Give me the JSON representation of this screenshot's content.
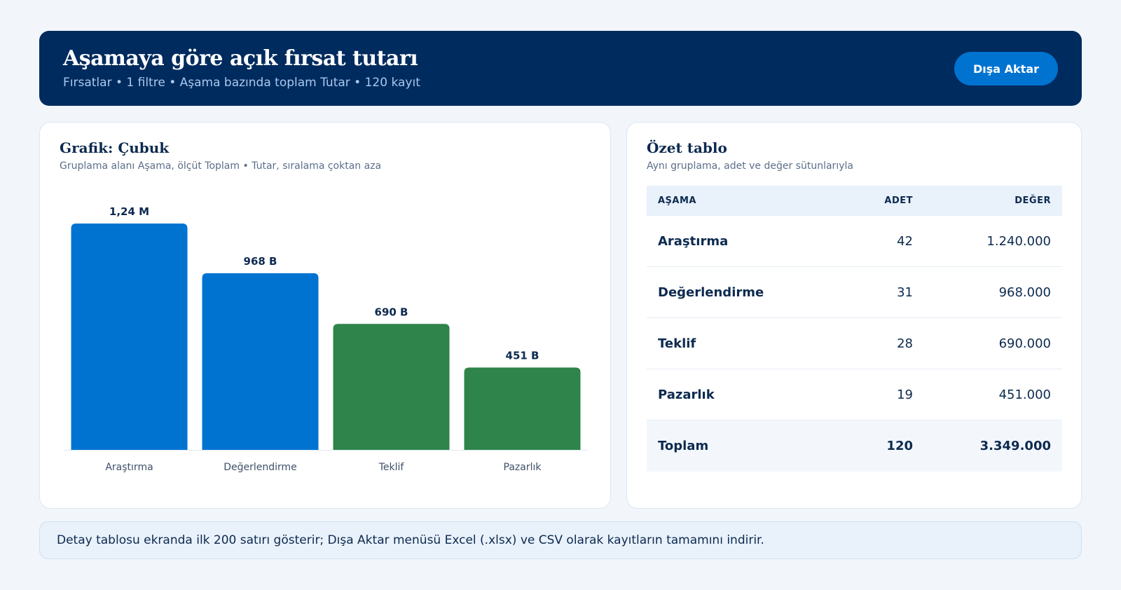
{
  "header": {
    "title": "Aşamaya göre açık fırsat tutarı",
    "subtitle": "Fırsatlar • 1 filtre • Aşama bazında toplam Tutar • 120 kayıt",
    "export_label": "Dışa Aktar"
  },
  "chart_card": {
    "title": "Grafik: Çubuk",
    "subtitle": "Gruplama alanı Aşama, ölçüt Toplam • Tutar, sıralama çoktan aza"
  },
  "chart_data": {
    "type": "bar",
    "title": "Grafik: Çubuk",
    "categories": [
      "Araştırma",
      "Değerlendirme",
      "Teklif",
      "Pazarlık"
    ],
    "values": [
      1240000,
      968000,
      690000,
      451000
    ],
    "data_labels": [
      "1,24 M",
      "968 B",
      "690 B",
      "451 B"
    ],
    "bar_colors": [
      "#0073d1",
      "#0073d1",
      "#2e844a",
      "#2e844a"
    ],
    "ylim": [
      0,
      1240000
    ],
    "grid": false,
    "legend": "none"
  },
  "table_card": {
    "title": "Özet tablo",
    "subtitle": "Aynı gruplama, adet ve değer sütunlarıyla",
    "columns": [
      "AŞAMA",
      "ADET",
      "DEĞER"
    ],
    "rows": [
      {
        "stage": "Araştırma",
        "count": "42",
        "value": "1.240.000"
      },
      {
        "stage": "Değerlendirme",
        "count": "31",
        "value": "968.000"
      },
      {
        "stage": "Teklif",
        "count": "28",
        "value": "690.000"
      },
      {
        "stage": "Pazarlık",
        "count": "19",
        "value": "451.000"
      }
    ],
    "total": {
      "stage": "Toplam",
      "count": "120",
      "value": "3.349.000"
    }
  },
  "note": "Detay tablosu ekranda ilk 200 satırı gösterir; Dışa Aktar menüsü Excel (.xlsx) ve CSV olarak kayıtların tamamını indirir.",
  "colors": {
    "header_bg": "#002b5e",
    "accent": "#0073d1",
    "success": "#2e844a"
  }
}
